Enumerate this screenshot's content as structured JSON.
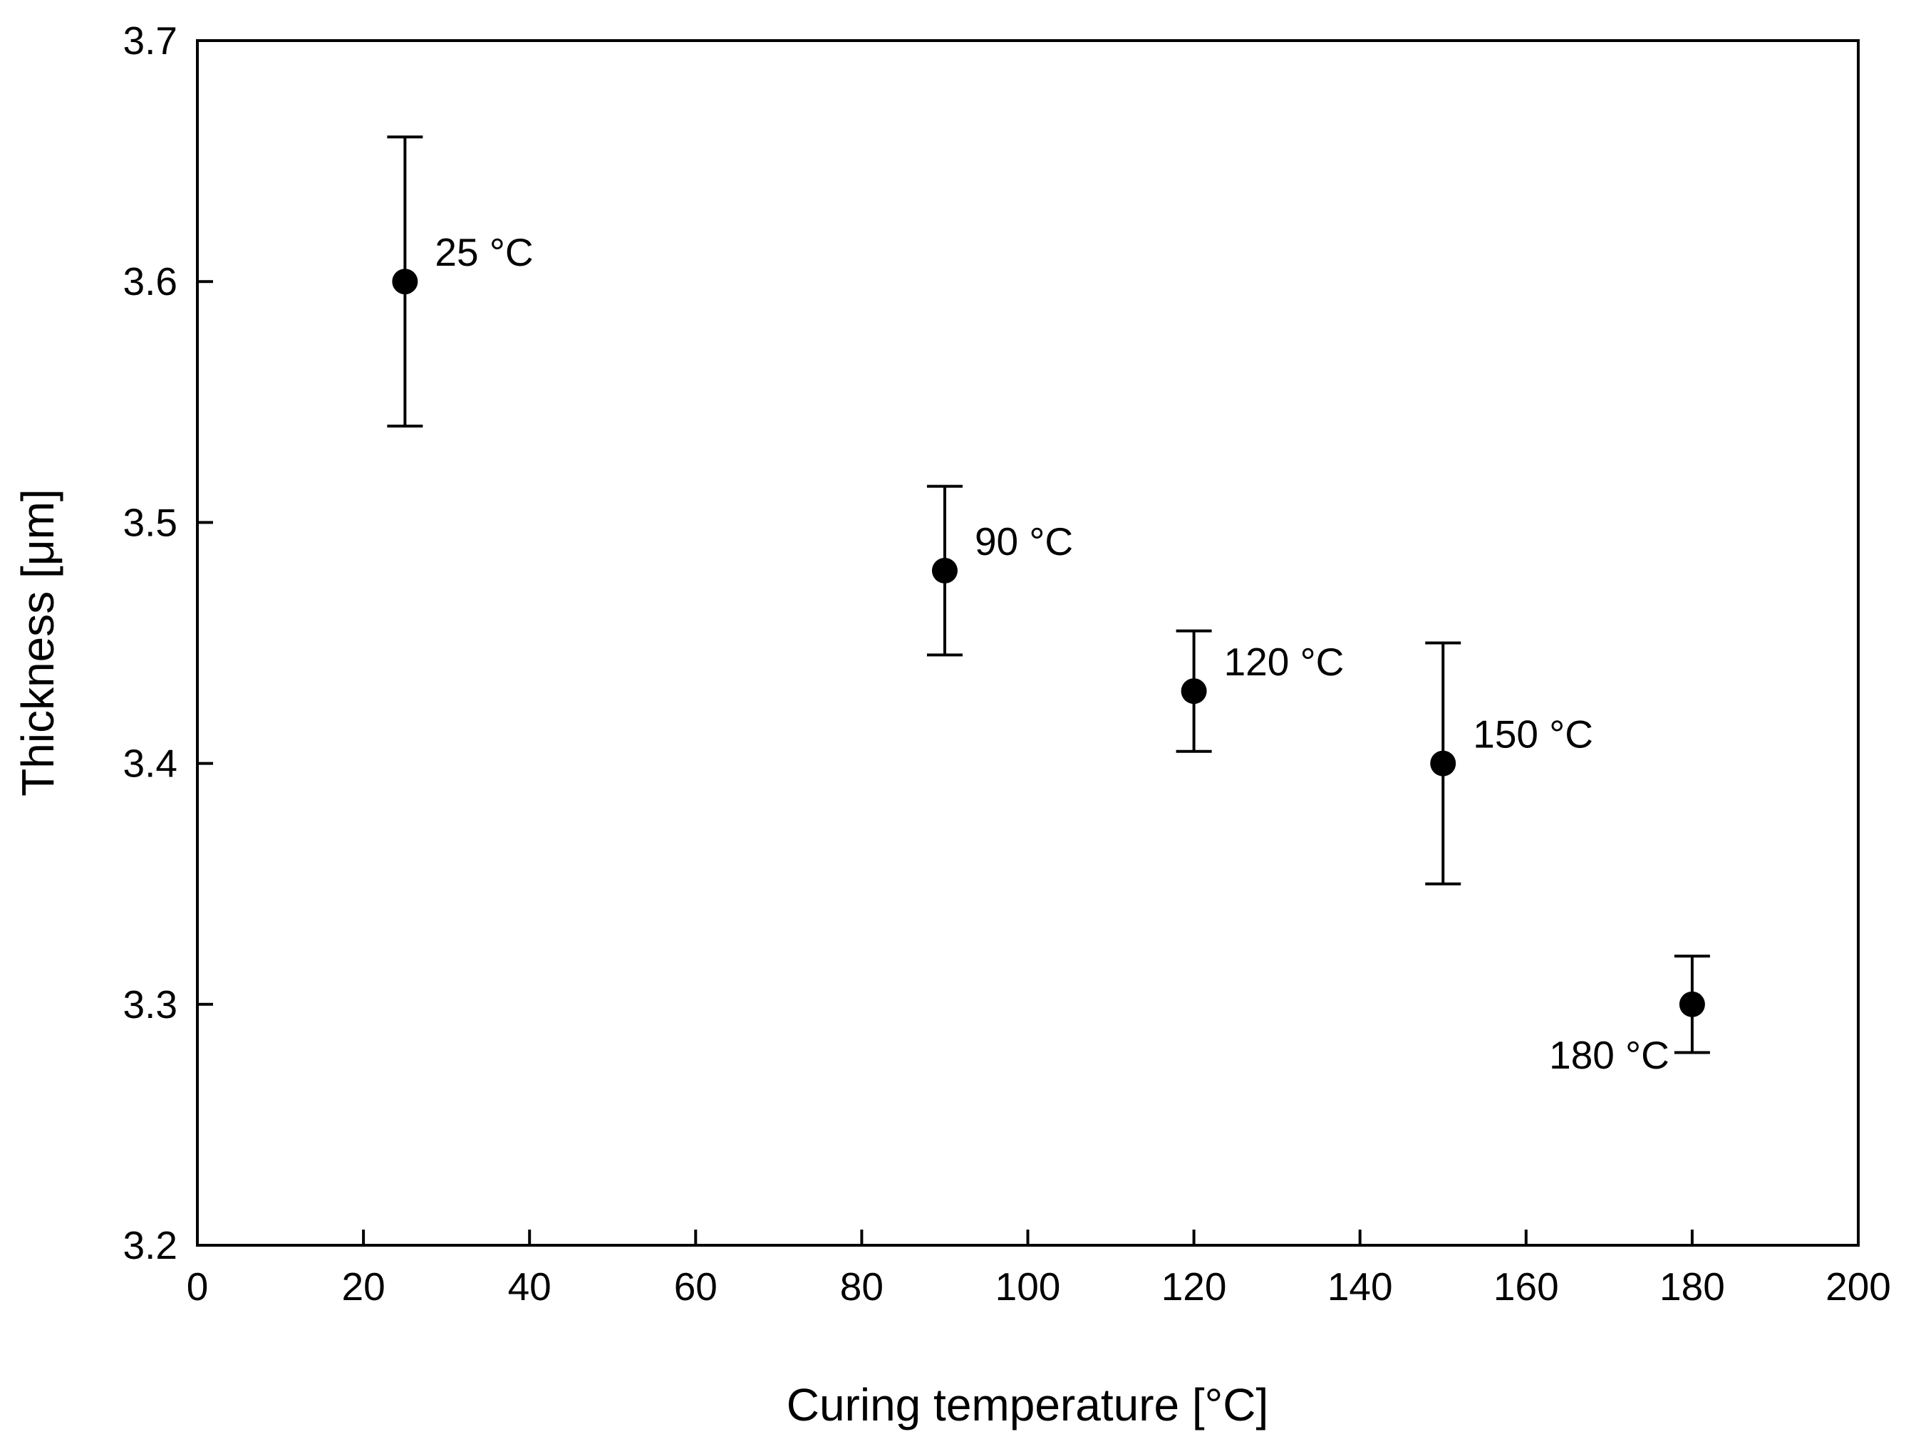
{
  "chart_data": {
    "type": "scatter",
    "title": "",
    "xlabel": "Curing temperature [°C]",
    "ylabel": "Thickness [μm]",
    "xlim": [
      0,
      200
    ],
    "ylim": [
      3.2,
      3.7
    ],
    "x_ticks": [
      0,
      20,
      40,
      60,
      80,
      100,
      120,
      140,
      160,
      180,
      200
    ],
    "x_tick_labels": [
      "0",
      "20",
      "40",
      "60",
      "80",
      "100",
      "120",
      "140",
      "160",
      "180",
      "200"
    ],
    "y_ticks": [
      3.2,
      3.3,
      3.4,
      3.5,
      3.6,
      3.7
    ],
    "y_tick_labels": [
      "3.2",
      "3.3",
      "3.4",
      "3.5",
      "3.6",
      "3.7"
    ],
    "grid": false,
    "series": [
      {
        "name": "Thickness",
        "points": [
          {
            "x": 25,
            "y": 3.6,
            "err_low": 3.54,
            "err_high": 3.66,
            "label": "25 °C",
            "label_pos": "right"
          },
          {
            "x": 90,
            "y": 3.48,
            "err_low": 3.445,
            "err_high": 3.515,
            "label": "90 °C",
            "label_pos": "right"
          },
          {
            "x": 120,
            "y": 3.43,
            "err_low": 3.405,
            "err_high": 3.455,
            "label": "120 °C",
            "label_pos": "right"
          },
          {
            "x": 150,
            "y": 3.4,
            "err_low": 3.35,
            "err_high": 3.45,
            "label": "150 °C",
            "label_pos": "right"
          },
          {
            "x": 180,
            "y": 3.3,
            "err_low": 3.28,
            "err_high": 3.32,
            "label": "180 °C",
            "label_pos": "left"
          }
        ]
      }
    ]
  }
}
